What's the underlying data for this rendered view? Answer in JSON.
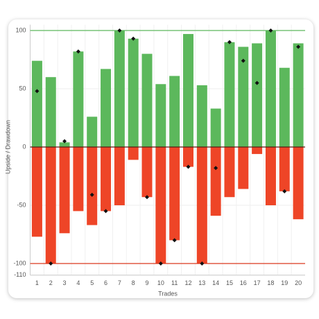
{
  "chart_data": {
    "type": "bar",
    "y_label": "Upside / Drawdown",
    "x_label": "Trades",
    "categories": [
      "1",
      "2",
      "3",
      "4",
      "5",
      "6",
      "7",
      "8",
      "9",
      "10",
      "11",
      "12",
      "13",
      "14",
      "15",
      "16",
      "17",
      "18",
      "19",
      "20"
    ],
    "series": [
      {
        "color": "#5cb85c",
        "values": [
          74,
          60,
          4,
          82,
          26,
          67,
          100,
          93,
          80,
          54,
          61,
          97,
          53,
          33,
          90,
          86,
          89,
          100,
          68,
          89
        ]
      },
      {
        "color": "#ee4527",
        "values": [
          -77,
          -100,
          -74,
          -55,
          -67,
          -55,
          -50,
          -11,
          -43,
          -100,
          -80,
          -17,
          -100,
          -59,
          -43,
          -36,
          -6,
          -50,
          -38,
          -62
        ]
      },
      {
        "color": "#111111",
        "marker": "diamond",
        "values": [
          48,
          -100,
          5,
          82,
          -41,
          -55,
          100,
          93,
          -43,
          -100,
          -80,
          -17,
          -100,
          -18,
          90,
          74,
          55,
          100,
          -38,
          86
        ]
      }
    ],
    "reference_lines": [
      {
        "value": 100,
        "color": "#5cb85c"
      },
      {
        "value": 0,
        "color": "#5a1a10"
      },
      {
        "value": -100,
        "color": "#d9381e"
      }
    ],
    "ylim": [
      -110,
      105
    ],
    "yticks": [
      -110,
      -100,
      -50,
      0,
      50,
      100
    ],
    "grid": true
  }
}
